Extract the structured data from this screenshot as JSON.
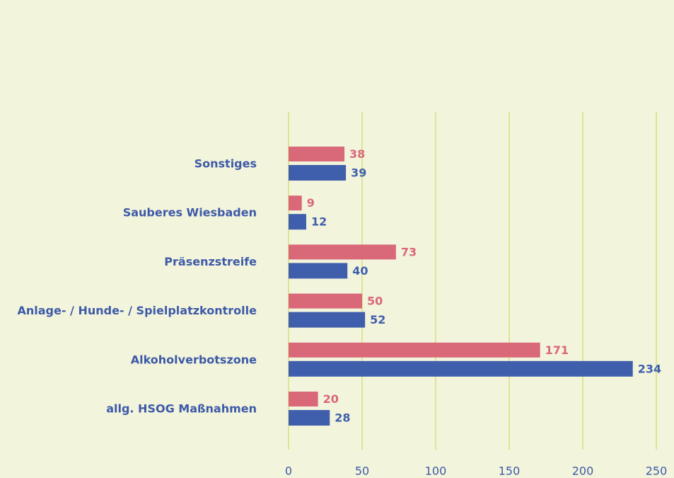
{
  "chart_data": {
    "type": "barh",
    "categories": [
      "Sonstiges",
      "Sauberes Wiesbaden",
      "Präsenzstreife",
      "Anlage- / Hunde- / Spielplatzkontrolle",
      "Alkoholverbotszone",
      "allg. HSOG Maßnahmen"
    ],
    "series": [
      {
        "color": "#d96878",
        "values": [
          38,
          9,
          73,
          50,
          171,
          20
        ]
      },
      {
        "color": "#3f5fad",
        "values": [
          39,
          12,
          40,
          52,
          234,
          28
        ]
      }
    ],
    "xlim": [
      0,
      250
    ],
    "xticks": [
      0,
      50,
      100,
      150,
      200,
      250
    ],
    "grid": true
  }
}
